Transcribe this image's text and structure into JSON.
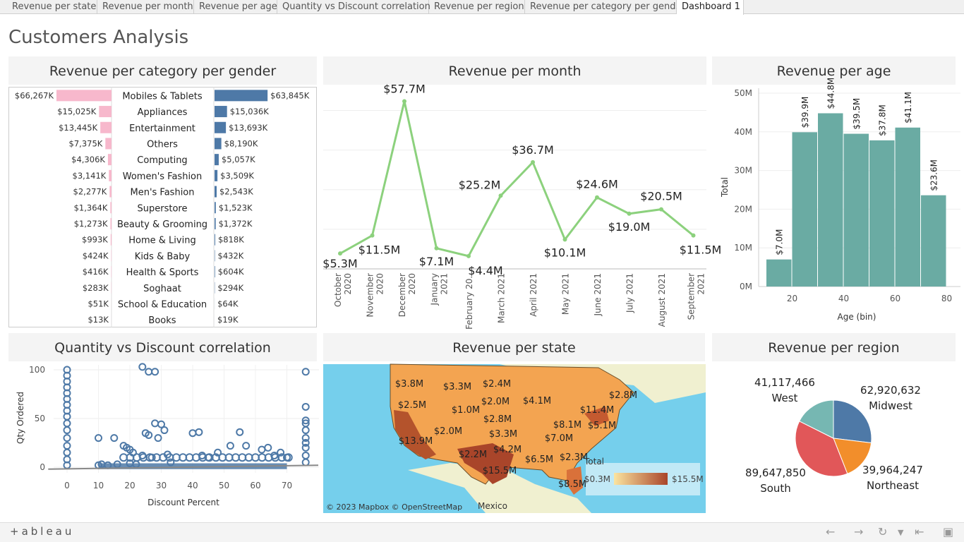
{
  "tabs": [
    "Revenue per state",
    "Revenue per month",
    "Revenue per age",
    "Quantity vs Discount correlation",
    "Revenue per region",
    "Revenue per category per gend...",
    "Dashboard 1"
  ],
  "dashboard_title": "Customers Analysis",
  "footer": {
    "logo": "+ableau",
    "icons": [
      "undo-icon",
      "redo-icon",
      "revert-icon",
      "dropdown-icon",
      "first-page-icon",
      "fullscreen-icon"
    ]
  },
  "colors": {
    "female": "#f7b8cc",
    "male": "#4e79a7",
    "line": "#8cd17d",
    "hist": "#6aaba3",
    "scatter": "#4e79a7",
    "ocean": "#75cfec",
    "land": "#f0f0d0"
  },
  "panels": {
    "category": "Revenue per category per gender",
    "month": "Revenue per month",
    "age": "Revenue per age",
    "scatter": "Quantity vs Discount correlation",
    "state": "Revenue per state",
    "region": "Revenue per region"
  },
  "chart_data": [
    {
      "type": "bar",
      "title": "Revenue per category per gender",
      "categories": [
        "Mobiles & Tablets",
        "Appliances",
        "Entertainment",
        "Others",
        "Computing",
        "Women's Fashion",
        "Men's Fashion",
        "Superstore",
        "Beauty & Grooming",
        "Home & Living",
        "Kids & Baby",
        "Health & Sports",
        "Soghaat",
        "School & Education",
        "Books"
      ],
      "series": [
        {
          "values": [
            66267,
            15025,
            13445,
            7375,
            4306,
            3141,
            2277,
            1364,
            1273,
            993,
            424,
            416,
            283,
            51,
            13
          ],
          "labels": [
            "$66,267K",
            "$15,025K",
            "$13,445K",
            "$7,375K",
            "$4,306K",
            "$3,141K",
            "$2,277K",
            "$1,364K",
            "$1,273K",
            "$993K",
            "$424K",
            "$416K",
            "$283K",
            "$51K",
            "$13K"
          ]
        },
        {
          "values": [
            63845,
            15036,
            13693,
            8190,
            5057,
            3509,
            2543,
            1523,
            1372,
            818,
            432,
            604,
            294,
            64,
            19
          ],
          "labels": [
            "$63,845K",
            "$15,036K",
            "$13,693K",
            "$8,190K",
            "$5,057K",
            "$3,509K",
            "$2,543K",
            "$1,523K",
            "$1,372K",
            "$818K",
            "$432K",
            "$604K",
            "$294K",
            "$64K",
            "$19K"
          ]
        }
      ]
    },
    {
      "type": "line",
      "title": "Revenue per month",
      "categories": [
        "October 2020",
        "November 2020",
        "December 2020",
        "January 2021",
        "February 20..",
        "March 2021",
        "April 2021",
        "May 2021",
        "June 2021",
        "July 2021",
        "August 2021",
        "September 2021"
      ],
      "values": [
        5.3,
        11.5,
        57.7,
        7.1,
        4.4,
        25.2,
        36.7,
        10.1,
        24.6,
        19.0,
        20.5,
        11.5
      ],
      "labels": [
        "$5.3M",
        "$11.5M",
        "$57.7M",
        "$7.1M",
        "$4.4M",
        "$25.2M",
        "$36.7M",
        "$10.1M",
        "$24.6M",
        "$19.0M",
        "$20.5M",
        "$11.5M"
      ],
      "ylim": [
        0,
        60
      ]
    },
    {
      "type": "bar",
      "title": "Revenue per age",
      "xlabel": "Age (bin)",
      "ylabel": "Total",
      "x": [
        10,
        20,
        30,
        40,
        50,
        60,
        70
      ],
      "bin_width": 10,
      "values": [
        7.0,
        39.9,
        44.8,
        39.5,
        37.8,
        41.1,
        23.6
      ],
      "labels": [
        "$7.0M",
        "$39.9M",
        "$44.8M",
        "$39.5M",
        "$37.8M",
        "$41.1M",
        "$23.6M"
      ],
      "yticks": [
        "0M",
        "10M",
        "20M",
        "30M",
        "40M",
        "50M"
      ],
      "xticks": [
        20,
        40,
        60,
        80
      ],
      "ylim": [
        0,
        50
      ],
      "xlim": [
        10,
        80
      ]
    },
    {
      "type": "scatter",
      "title": "Quantity vs Discount correlation",
      "xlabel": "Discount Percent",
      "ylabel": "Qty Ordered",
      "xticks": [
        0,
        10,
        20,
        30,
        40,
        50,
        60,
        70
      ],
      "yticks": [
        0,
        50,
        100
      ],
      "xlim": [
        -6,
        80
      ],
      "ylim": [
        -6,
        105
      ],
      "points": [
        [
          0,
          2
        ],
        [
          0,
          8
        ],
        [
          0,
          15
        ],
        [
          0,
          22
        ],
        [
          0,
          30
        ],
        [
          0,
          38
        ],
        [
          0,
          45
        ],
        [
          0,
          52
        ],
        [
          0,
          58
        ],
        [
          0,
          64
        ],
        [
          0,
          70
        ],
        [
          0,
          76
        ],
        [
          0,
          82
        ],
        [
          0,
          88
        ],
        [
          0,
          94
        ],
        [
          0,
          100
        ],
        [
          10,
          30
        ],
        [
          10,
          2
        ],
        [
          11,
          3
        ],
        [
          13,
          2
        ],
        [
          15,
          30
        ],
        [
          16,
          3
        ],
        [
          18,
          22
        ],
        [
          19,
          20
        ],
        [
          20,
          18
        ],
        [
          20,
          4
        ],
        [
          21,
          15
        ],
        [
          22,
          3
        ],
        [
          24,
          12
        ],
        [
          25,
          35
        ],
        [
          26,
          33
        ],
        [
          27,
          10
        ],
        [
          28,
          45
        ],
        [
          29,
          30
        ],
        [
          30,
          44
        ],
        [
          31,
          38
        ],
        [
          32,
          13
        ],
        [
          33,
          5
        ],
        [
          24,
          103
        ],
        [
          26,
          98
        ],
        [
          28,
          98
        ],
        [
          40,
          35
        ],
        [
          42,
          36
        ],
        [
          43,
          12
        ],
        [
          45,
          10
        ],
        [
          48,
          15
        ],
        [
          52,
          22
        ],
        [
          55,
          36
        ],
        [
          57,
          22
        ],
        [
          62,
          18
        ],
        [
          64,
          20
        ],
        [
          66,
          12
        ],
        [
          68,
          15
        ],
        [
          70,
          10
        ],
        [
          76,
          98
        ],
        [
          76,
          62
        ],
        [
          76,
          48
        ],
        [
          76,
          45
        ],
        [
          76,
          38
        ],
        [
          76,
          30
        ],
        [
          76,
          25
        ],
        [
          76,
          20
        ],
        [
          76,
          12
        ],
        [
          76,
          5
        ]
      ],
      "trend": [
        [
          -6,
          -2
        ],
        [
          80,
          2
        ]
      ]
    },
    {
      "type": "map",
      "title": "Revenue per state",
      "legend_title": "Total",
      "range_labels": [
        "$0.3M",
        "$15.5M"
      ],
      "value_labels": [
        "$3.8M",
        "$3.3M",
        "$2.4M",
        "$2.5M",
        "$2.0M",
        "$1.0M",
        "$4.1M",
        "$2.8M",
        "$11.4M",
        "$2.0M",
        "$3.3M",
        "$8.1M",
        "$5.1M",
        "$13.9M",
        "$2.2M",
        "$4.2M",
        "$7.0M",
        "$6.5M",
        "$2.3M",
        "$15.5M",
        "$8.5M",
        "$2.8M"
      ],
      "place_labels": [
        "Mexico"
      ],
      "attribution": "© 2023 Mapbox  © OpenStreetMap"
    },
    {
      "type": "pie",
      "title": "Revenue per region",
      "slices": [
        {
          "name": "Midwest",
          "value": 62920632,
          "label": "62,920,632",
          "color": "#4e79a7"
        },
        {
          "name": "Northeast",
          "value": 39964247,
          "label": "39,964,247",
          "color": "#f28e2b"
        },
        {
          "name": "South",
          "value": 89647850,
          "label": "89,647,850",
          "color": "#e15759"
        },
        {
          "name": "West",
          "value": 41117466,
          "label": "41,117,466",
          "color": "#76b7b2"
        }
      ]
    }
  ]
}
